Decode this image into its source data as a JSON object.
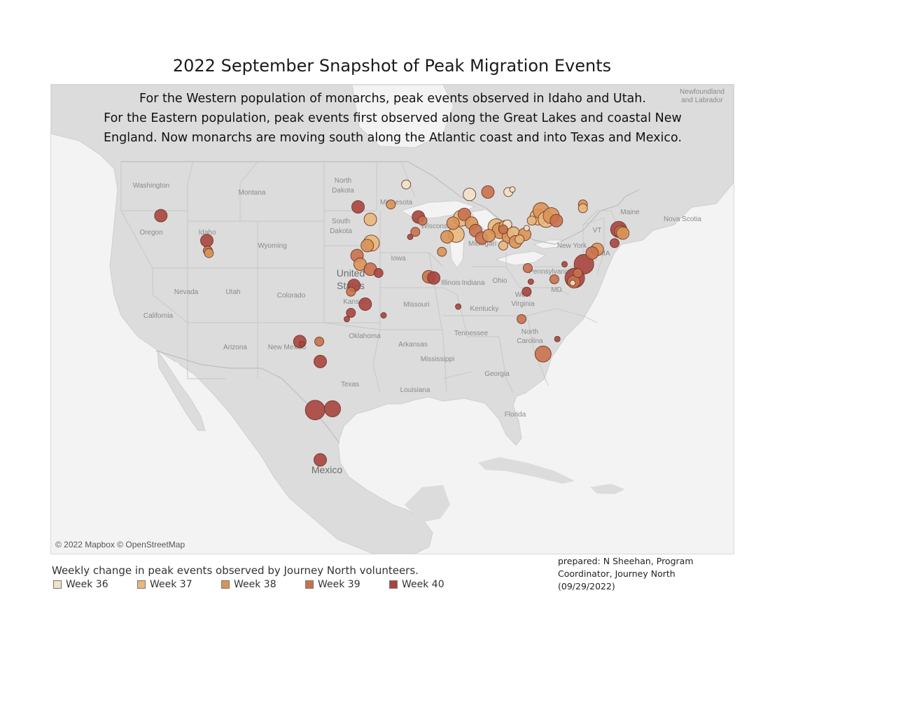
{
  "title": "2022 September Snapshot of Peak Migration Events",
  "subtitle_lines": [
    "For the Western population of monarchs, peak events observed in Idaho  and Utah.",
    "For the Eastern population, peak events first observed along the Great Lakes and coastal New",
    "England. Now monarchs are moving south along the Atlantic coast and into Texas and Mexico."
  ],
  "attribution": "© 2022 Mapbox © OpenStreetMap",
  "legend": {
    "title": "Weekly change in peak events observed by Journey North volunteers.",
    "items": [
      {
        "label": "Week 36",
        "color": "#f1e2c8"
      },
      {
        "label": "Week 37",
        "color": "#e8b77c"
      },
      {
        "label": "Week 38",
        "color": "#d99356"
      },
      {
        "label": "Week 39",
        "color": "#c9714d"
      },
      {
        "label": "Week 40",
        "color": "#a9443e"
      }
    ]
  },
  "credit_lines": [
    "prepared:  N Sheehan, Program",
    "Coordinator, Journey North",
    "(09/29/2022)"
  ],
  "map_labels": [
    {
      "text": "Newfoundland",
      "kind": "region"
    },
    {
      "text": "and Labrador",
      "kind": "region"
    },
    {
      "text": "Washington",
      "kind": "state"
    },
    {
      "text": "Montana",
      "kind": "state"
    },
    {
      "text": "North",
      "kind": "state"
    },
    {
      "text": "Dakota",
      "kind": "state"
    },
    {
      "text": "Minnesota",
      "kind": "state"
    },
    {
      "text": "Maine",
      "kind": "state"
    },
    {
      "text": "Nova Scotia",
      "kind": "region"
    },
    {
      "text": "Oregon",
      "kind": "state"
    },
    {
      "text": "Idaho",
      "kind": "state"
    },
    {
      "text": "South",
      "kind": "state"
    },
    {
      "text": "Dakota",
      "kind": "state"
    },
    {
      "text": "Wisconsin",
      "kind": "state"
    },
    {
      "text": "Michigan",
      "kind": "state"
    },
    {
      "text": "VT",
      "kind": "state"
    },
    {
      "text": "Wyoming",
      "kind": "state"
    },
    {
      "text": "New York",
      "kind": "state"
    },
    {
      "text": "MA",
      "kind": "state"
    },
    {
      "text": "Iowa",
      "kind": "state"
    },
    {
      "text": "United",
      "kind": "country"
    },
    {
      "text": "States",
      "kind": "country"
    },
    {
      "text": "Pennsylvania",
      "kind": "state"
    },
    {
      "text": "Nevada",
      "kind": "state"
    },
    {
      "text": "Utah",
      "kind": "state"
    },
    {
      "text": "Colorado",
      "kind": "state"
    },
    {
      "text": "Illinois",
      "kind": "state"
    },
    {
      "text": "Indiana",
      "kind": "state"
    },
    {
      "text": "Ohio",
      "kind": "state"
    },
    {
      "text": "Kansas",
      "kind": "state"
    },
    {
      "text": "Missouri",
      "kind": "state"
    },
    {
      "text": "MD",
      "kind": "state"
    },
    {
      "text": "West",
      "kind": "state"
    },
    {
      "text": "Virginia",
      "kind": "state"
    },
    {
      "text": "California",
      "kind": "state"
    },
    {
      "text": "Kentucky",
      "kind": "state"
    },
    {
      "text": "Tennessee",
      "kind": "state"
    },
    {
      "text": "North",
      "kind": "state"
    },
    {
      "text": "Carolina",
      "kind": "state"
    },
    {
      "text": "Oklahoma",
      "kind": "state"
    },
    {
      "text": "Arizona",
      "kind": "state"
    },
    {
      "text": "New Mexico",
      "kind": "state"
    },
    {
      "text": "Arkansas",
      "kind": "state"
    },
    {
      "text": "Mississippi",
      "kind": "state"
    },
    {
      "text": "Georgia",
      "kind": "state"
    },
    {
      "text": "Texas",
      "kind": "state"
    },
    {
      "text": "Louisiana",
      "kind": "state"
    },
    {
      "text": "Florida",
      "kind": "state"
    },
    {
      "text": "Mexico",
      "kind": "country"
    }
  ],
  "observations": [
    {
      "week": 40,
      "lon": -111.9,
      "lat": 41.5,
      "size": 3
    },
    {
      "week": 39,
      "lon": -111.8,
      "lat": 40.7,
      "size": 2
    },
    {
      "week": 38,
      "lon": -111.7,
      "lat": 40.5,
      "size": 2
    },
    {
      "week": 40,
      "lon": -116.4,
      "lat": 43.5,
      "size": 3
    },
    {
      "week": 40,
      "lon": -97.1,
      "lat": 44.2,
      "size": 3
    },
    {
      "week": 37,
      "lon": -95.9,
      "lat": 43.2,
      "size": 3
    },
    {
      "week": 38,
      "lon": -93.9,
      "lat": 44.4,
      "size": 2
    },
    {
      "week": 36,
      "lon": -92.4,
      "lat": 46.0,
      "size": 2
    },
    {
      "week": 40,
      "lon": -91.2,
      "lat": 43.4,
      "size": 3
    },
    {
      "week": 39,
      "lon": -90.8,
      "lat": 43.1,
      "size": 2
    },
    {
      "week": 39,
      "lon": -91.5,
      "lat": 42.2,
      "size": 2
    },
    {
      "week": 40,
      "lon": -92.0,
      "lat": 41.8,
      "size": 1
    },
    {
      "week": 37,
      "lon": -95.8,
      "lat": 41.3,
      "size": 4
    },
    {
      "week": 38,
      "lon": -96.2,
      "lat": 41.1,
      "size": 3
    },
    {
      "week": 39,
      "lon": -97.2,
      "lat": 40.3,
      "size": 3
    },
    {
      "week": 38,
      "lon": -96.9,
      "lat": 39.6,
      "size": 3
    },
    {
      "week": 39,
      "lon": -95.9,
      "lat": 39.2,
      "size": 3
    },
    {
      "week": 40,
      "lon": -95.1,
      "lat": 38.9,
      "size": 2
    },
    {
      "week": 40,
      "lon": -97.5,
      "lat": 37.9,
      "size": 3
    },
    {
      "week": 39,
      "lon": -97.8,
      "lat": 37.4,
      "size": 2
    },
    {
      "week": 40,
      "lon": -96.4,
      "lat": 36.4,
      "size": 3
    },
    {
      "week": 40,
      "lon": -97.8,
      "lat": 35.7,
      "size": 2
    },
    {
      "week": 40,
      "lon": -98.2,
      "lat": 35.2,
      "size": 1
    },
    {
      "week": 40,
      "lon": -94.6,
      "lat": 35.5,
      "size": 1
    },
    {
      "week": 39,
      "lon": -90.2,
      "lat": 38.6,
      "size": 3
    },
    {
      "week": 40,
      "lon": -89.7,
      "lat": 38.5,
      "size": 3
    },
    {
      "week": 38,
      "lon": -88.9,
      "lat": 40.6,
      "size": 2
    },
    {
      "week": 38,
      "lon": -88.4,
      "lat": 41.8,
      "size": 3
    },
    {
      "week": 37,
      "lon": -87.5,
      "lat": 42.0,
      "size": 4
    },
    {
      "week": 38,
      "lon": -87.8,
      "lat": 42.9,
      "size": 3
    },
    {
      "week": 37,
      "lon": -87.0,
      "lat": 43.3,
      "size": 4
    },
    {
      "week": 39,
      "lon": -86.7,
      "lat": 43.6,
      "size": 3
    },
    {
      "week": 36,
      "lon": -86.2,
      "lat": 45.2,
      "size": 3
    },
    {
      "week": 39,
      "lon": -84.4,
      "lat": 45.4,
      "size": 3
    },
    {
      "week": 36,
      "lon": -82.4,
      "lat": 45.4,
      "size": 2
    },
    {
      "week": 36,
      "lon": -82.0,
      "lat": 45.6,
      "size": 1
    },
    {
      "week": 38,
      "lon": -86.0,
      "lat": 42.9,
      "size": 3
    },
    {
      "week": 39,
      "lon": -85.6,
      "lat": 42.3,
      "size": 3
    },
    {
      "week": 39,
      "lon": -85.0,
      "lat": 41.7,
      "size": 3
    },
    {
      "week": 38,
      "lon": -84.3,
      "lat": 41.9,
      "size": 3
    },
    {
      "week": 37,
      "lon": -83.6,
      "lat": 42.6,
      "size": 4
    },
    {
      "week": 38,
      "lon": -83.2,
      "lat": 42.3,
      "size": 4
    },
    {
      "week": 37,
      "lon": -82.7,
      "lat": 42.6,
      "size": 3
    },
    {
      "week": 36,
      "lon": -82.5,
      "lat": 42.8,
      "size": 2
    },
    {
      "week": 39,
      "lon": -82.9,
      "lat": 42.4,
      "size": 2
    },
    {
      "week": 38,
      "lon": -82.4,
      "lat": 41.8,
      "size": 3
    },
    {
      "week": 37,
      "lon": -81.9,
      "lat": 42.1,
      "size": 3
    },
    {
      "week": 38,
      "lon": -81.7,
      "lat": 41.4,
      "size": 3
    },
    {
      "week": 37,
      "lon": -82.9,
      "lat": 41.1,
      "size": 2
    },
    {
      "week": 37,
      "lon": -81.3,
      "lat": 41.6,
      "size": 2
    },
    {
      "week": 38,
      "lon": -80.8,
      "lat": 42.0,
      "size": 3
    },
    {
      "week": 36,
      "lon": -80.6,
      "lat": 42.5,
      "size": 1
    },
    {
      "week": 37,
      "lon": -79.5,
      "lat": 43.4,
      "size": 4
    },
    {
      "week": 38,
      "lon": -79.2,
      "lat": 43.9,
      "size": 4
    },
    {
      "week": 37,
      "lon": -78.7,
      "lat": 43.2,
      "size": 4
    },
    {
      "week": 38,
      "lon": -78.2,
      "lat": 43.5,
      "size": 4
    },
    {
      "week": 39,
      "lon": -77.7,
      "lat": 43.1,
      "size": 3
    },
    {
      "week": 37,
      "lon": -80.1,
      "lat": 43.1,
      "size": 2
    },
    {
      "week": 38,
      "lon": -75.1,
      "lat": 44.4,
      "size": 2
    },
    {
      "week": 37,
      "lon": -75.1,
      "lat": 44.1,
      "size": 2
    },
    {
      "week": 40,
      "lon": -71.6,
      "lat": 42.4,
      "size": 4
    },
    {
      "week": 39,
      "lon": -71.4,
      "lat": 42.2,
      "size": 3
    },
    {
      "week": 38,
      "lon": -71.2,
      "lat": 42.1,
      "size": 3
    },
    {
      "week": 40,
      "lon": -72.0,
      "lat": 41.3,
      "size": 2
    },
    {
      "week": 38,
      "lon": -73.7,
      "lat": 40.8,
      "size": 3
    },
    {
      "week": 39,
      "lon": -74.2,
      "lat": 40.5,
      "size": 3
    },
    {
      "week": 40,
      "lon": -75.0,
      "lat": 39.6,
      "size": 5
    },
    {
      "week": 40,
      "lon": -75.9,
      "lat": 38.5,
      "size": 5
    },
    {
      "week": 39,
      "lon": -76.0,
      "lat": 38.2,
      "size": 3
    },
    {
      "week": 36,
      "lon": -76.1,
      "lat": 38.1,
      "size": 1
    },
    {
      "week": 39,
      "lon": -75.6,
      "lat": 38.9,
      "size": 2
    },
    {
      "week": 40,
      "lon": -76.9,
      "lat": 39.6,
      "size": 1
    },
    {
      "week": 39,
      "lon": -77.9,
      "lat": 38.4,
      "size": 2
    },
    {
      "week": 39,
      "lon": -80.5,
      "lat": 39.3,
      "size": 2
    },
    {
      "week": 40,
      "lon": -80.2,
      "lat": 38.2,
      "size": 1
    },
    {
      "week": 40,
      "lon": -80.6,
      "lat": 37.4,
      "size": 2
    },
    {
      "week": 40,
      "lon": -87.3,
      "lat": 36.2,
      "size": 1
    },
    {
      "week": 39,
      "lon": -81.1,
      "lat": 35.2,
      "size": 2
    },
    {
      "week": 39,
      "lon": -79.0,
      "lat": 32.4,
      "size": 4
    },
    {
      "week": 40,
      "lon": -77.6,
      "lat": 33.6,
      "size": 1
    },
    {
      "week": 40,
      "lon": -102.8,
      "lat": 33.4,
      "size": 3
    },
    {
      "week": 40,
      "lon": -102.6,
      "lat": 33.2,
      "size": 1
    },
    {
      "week": 39,
      "lon": -100.9,
      "lat": 33.4,
      "size": 2
    },
    {
      "week": 40,
      "lon": -100.8,
      "lat": 31.8,
      "size": 3
    },
    {
      "week": 40,
      "lon": -101.3,
      "lat": 27.9,
      "size": 5
    },
    {
      "week": 40,
      "lon": -99.6,
      "lat": 28.0,
      "size": 4
    },
    {
      "week": 40,
      "lon": -100.8,
      "lat": 23.9,
      "size": 3
    }
  ]
}
